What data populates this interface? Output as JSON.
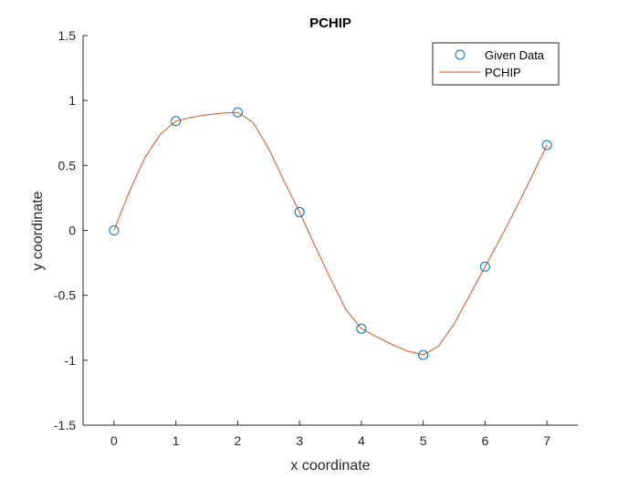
{
  "chart_data": {
    "type": "line",
    "title": "PCHIP",
    "xlabel": "x coordinate",
    "ylabel": "y coordinate",
    "xlim": [
      -0.5,
      7.5
    ],
    "ylim": [
      -1.5,
      1.5
    ],
    "xticks": [
      0,
      1,
      2,
      3,
      4,
      5,
      6,
      7
    ],
    "yticks": [
      -1.5,
      -1,
      -0.5,
      0,
      0.5,
      1,
      1.5
    ],
    "xtick_labels": [
      "0",
      "1",
      "2",
      "3",
      "4",
      "5",
      "6",
      "7"
    ],
    "ytick_labels": [
      "-1.5",
      "-1",
      "-0.5",
      "0",
      "0.5",
      "1",
      "1.5"
    ],
    "grid": false,
    "legend_position": "top-right",
    "series": [
      {
        "name": "Given Data",
        "style": "markers",
        "color": "#0072BD",
        "x": [
          0,
          1,
          2,
          3,
          4,
          5,
          6,
          7
        ],
        "y": [
          0,
          0.841,
          0.909,
          0.141,
          -0.757,
          -0.959,
          -0.279,
          0.657
        ]
      },
      {
        "name": "PCHIP",
        "style": "line",
        "color": "#D95319",
        "x": [
          0,
          0.25,
          0.5,
          0.75,
          1,
          1.25,
          1.5,
          1.75,
          2,
          2.25,
          2.5,
          2.75,
          3,
          3.25,
          3.5,
          3.75,
          4,
          4.25,
          4.5,
          4.75,
          5,
          5.25,
          5.5,
          5.75,
          6,
          6.25,
          6.5,
          6.75,
          7
        ],
        "y": [
          0,
          0.3,
          0.56,
          0.74,
          0.841,
          0.87,
          0.89,
          0.903,
          0.909,
          0.83,
          0.63,
          0.38,
          0.141,
          -0.12,
          -0.37,
          -0.61,
          -0.757,
          -0.82,
          -0.88,
          -0.93,
          -0.959,
          -0.89,
          -0.72,
          -0.5,
          -0.279,
          -0.06,
          0.17,
          0.41,
          0.657
        ]
      }
    ]
  }
}
